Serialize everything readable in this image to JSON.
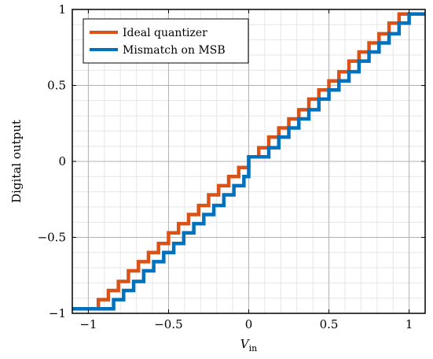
{
  "chart_data": {
    "type": "line",
    "title": "",
    "xlabel": "V",
    "xlabel_sub": "in",
    "ylabel": "Digital output",
    "xlim": [
      -1.1,
      1.1
    ],
    "ylim": [
      -1,
      1
    ],
    "x_ticks": [
      -1,
      -0.5,
      0,
      0.5,
      1
    ],
    "x_tick_labels": [
      "−1",
      "−0.5",
      "0",
      "0.5",
      "1"
    ],
    "y_ticks": [
      -1,
      -0.5,
      0,
      0.5,
      1
    ],
    "y_tick_labels": [
      "−1",
      "−0.5",
      "0",
      "0.5",
      "1"
    ],
    "grid": true,
    "minor_grid_step": 0.1,
    "legend_position": "top-left",
    "series": [
      {
        "name": "Ideal quantizer",
        "color": "#d95319",
        "step": "post",
        "x": [
          -1.1,
          -0.9375,
          -0.875,
          -0.8125,
          -0.75,
          -0.6875,
          -0.625,
          -0.5625,
          -0.5,
          -0.4375,
          -0.375,
          -0.3125,
          -0.25,
          -0.1875,
          -0.125,
          -0.0625,
          0,
          0.0625,
          0.125,
          0.1875,
          0.25,
          0.3125,
          0.375,
          0.4375,
          0.5,
          0.5625,
          0.625,
          0.6875,
          0.75,
          0.8125,
          0.875,
          0.9375,
          1.1
        ],
        "y": [
          -0.97,
          -0.91,
          -0.85,
          -0.79,
          -0.72,
          -0.66,
          -0.6,
          -0.54,
          -0.47,
          -0.41,
          -0.35,
          -0.29,
          -0.22,
          -0.16,
          -0.1,
          -0.04,
          0.03,
          0.09,
          0.16,
          0.22,
          0.28,
          0.34,
          0.41,
          0.47,
          0.53,
          0.59,
          0.66,
          0.72,
          0.78,
          0.84,
          0.91,
          0.97,
          0.97
        ]
      },
      {
        "name": "Mismatch on MSB",
        "color": "#0072bd",
        "step": "post",
        "x": [
          -1.1,
          -0.8425,
          -0.78,
          -0.7175,
          -0.655,
          -0.5925,
          -0.53,
          -0.4675,
          -0.405,
          -0.3425,
          -0.28,
          -0.2175,
          -0.155,
          -0.0925,
          -0.03,
          0,
          0.125,
          0.1875,
          0.25,
          0.3125,
          0.375,
          0.4375,
          0.5,
          0.5625,
          0.625,
          0.6875,
          0.75,
          0.8125,
          0.875,
          0.9375,
          1.0,
          1.1
        ],
        "y": [
          -0.97,
          -0.91,
          -0.85,
          -0.79,
          -0.72,
          -0.66,
          -0.6,
          -0.54,
          -0.47,
          -0.41,
          -0.35,
          -0.29,
          -0.22,
          -0.16,
          -0.1,
          0.03,
          0.09,
          0.16,
          0.22,
          0.28,
          0.34,
          0.41,
          0.47,
          0.53,
          0.59,
          0.66,
          0.72,
          0.78,
          0.84,
          0.91,
          0.97,
          0.97
        ]
      }
    ]
  }
}
